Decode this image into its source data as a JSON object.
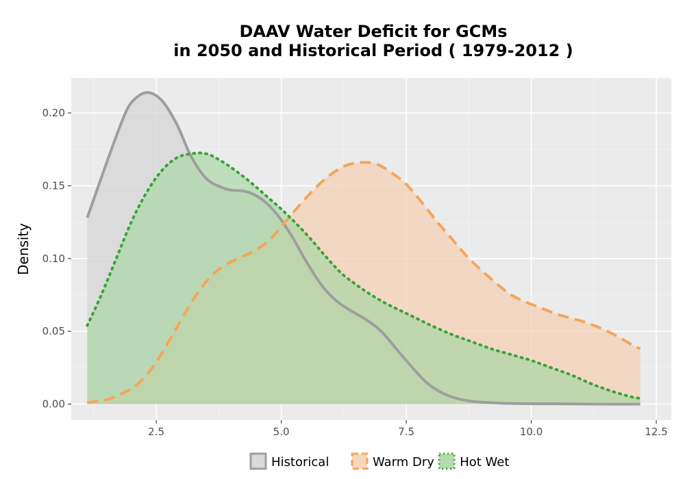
{
  "chart_data": {
    "type": "area",
    "title_lines": [
      "DAAV  Water Deficit for GCMs",
      "in 2050 and Historical Period ( 1979-2012 )"
    ],
    "xlabel": "",
    "ylabel": "Density",
    "xlim": [
      0.8,
      12.8
    ],
    "ylim": [
      -0.011,
      0.224
    ],
    "x_ticks": [
      2.5,
      5.0,
      7.5,
      10.0,
      12.5
    ],
    "x_tick_labels": [
      "2.5",
      "5.0",
      "7.5",
      "10.0",
      "12.5"
    ],
    "y_ticks": [
      0.0,
      0.05,
      0.1,
      0.15,
      0.2
    ],
    "y_tick_labels": [
      "0.00",
      "0.05",
      "0.10",
      "0.15",
      "0.20"
    ],
    "grid": true,
    "legend_position": "bottom",
    "series": [
      {
        "name": "Historical",
        "color": "#9e9e9e",
        "fill": "#d3d3d3",
        "line_style": "solid",
        "x": [
          1.12,
          1.5,
          1.8,
          2.0,
          2.3,
          2.6,
          2.9,
          3.2,
          3.5,
          3.8,
          4.0,
          4.3,
          4.6,
          4.9,
          5.2,
          5.5,
          5.8,
          6.1,
          6.4,
          6.7,
          7.0,
          7.3,
          7.6,
          7.9,
          8.2,
          8.5,
          8.8,
          9.2,
          9.6,
          10.0,
          10.5,
          11.0,
          11.5,
          12.18
        ],
        "y": [
          0.128,
          0.165,
          0.193,
          0.207,
          0.214,
          0.209,
          0.193,
          0.17,
          0.155,
          0.149,
          0.147,
          0.146,
          0.141,
          0.131,
          0.116,
          0.098,
          0.082,
          0.071,
          0.064,
          0.058,
          0.05,
          0.038,
          0.026,
          0.015,
          0.008,
          0.004,
          0.002,
          0.001,
          0.0005,
          0.0003,
          0.0002,
          0.0001,
          0.0,
          0.0
        ]
      },
      {
        "name": "Warm Dry",
        "color": "#f5a55c",
        "fill": "#f5cfb0",
        "line_style": "dashed",
        "x": [
          1.12,
          1.5,
          1.8,
          2.1,
          2.4,
          2.7,
          3.0,
          3.3,
          3.6,
          3.9,
          4.2,
          4.5,
          4.8,
          5.1,
          5.4,
          5.7,
          6.0,
          6.3,
          6.6,
          6.9,
          7.2,
          7.5,
          7.8,
          8.1,
          8.4,
          8.7,
          9.0,
          9.3,
          9.6,
          9.9,
          10.2,
          10.5,
          10.8,
          11.1,
          11.4,
          11.7,
          12.0,
          12.18
        ],
        "y": [
          0.001,
          0.003,
          0.007,
          0.013,
          0.024,
          0.04,
          0.058,
          0.075,
          0.088,
          0.096,
          0.101,
          0.106,
          0.114,
          0.126,
          0.138,
          0.149,
          0.158,
          0.164,
          0.166,
          0.165,
          0.159,
          0.151,
          0.139,
          0.126,
          0.114,
          0.102,
          0.092,
          0.083,
          0.075,
          0.07,
          0.066,
          0.062,
          0.059,
          0.056,
          0.052,
          0.047,
          0.041,
          0.038
        ]
      },
      {
        "name": "Hot Wet",
        "color": "#3aa33a",
        "fill": "#a8d5a2",
        "line_style": "dotted",
        "x": [
          1.12,
          1.4,
          1.7,
          2.0,
          2.3,
          2.6,
          2.9,
          3.2,
          3.5,
          3.8,
          4.1,
          4.4,
          4.7,
          5.0,
          5.3,
          5.6,
          5.9,
          6.2,
          6.5,
          6.8,
          7.1,
          7.4,
          7.7,
          8.0,
          8.4,
          8.8,
          9.2,
          9.6,
          10.0,
          10.4,
          10.8,
          11.2,
          11.6,
          12.0,
          12.18
        ],
        "y": [
          0.054,
          0.075,
          0.1,
          0.125,
          0.145,
          0.16,
          0.169,
          0.172,
          0.172,
          0.167,
          0.16,
          0.152,
          0.143,
          0.134,
          0.124,
          0.113,
          0.101,
          0.09,
          0.082,
          0.075,
          0.069,
          0.064,
          0.059,
          0.054,
          0.048,
          0.043,
          0.038,
          0.034,
          0.03,
          0.025,
          0.02,
          0.014,
          0.009,
          0.005,
          0.004
        ]
      }
    ]
  }
}
